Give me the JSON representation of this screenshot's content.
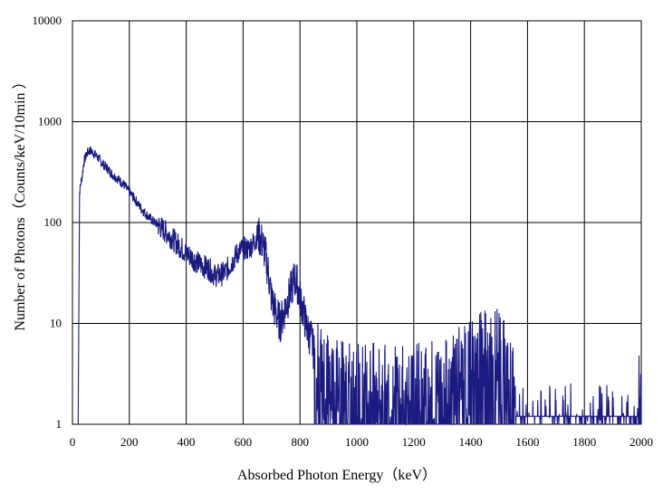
{
  "chart_data": {
    "type": "line",
    "title": "",
    "xlabel": "Absorbed Photon Energy（keV）",
    "ylabel": "Number  of Photons（Counts/keV/10min ）",
    "xlim": [
      0,
      2000
    ],
    "ylim": [
      1,
      10000
    ],
    "yscale": "log",
    "grid": true,
    "legend": "none",
    "color": "#1a1a80",
    "x_ticks": [
      "0",
      "200",
      "400",
      "600",
      "800",
      "1000",
      "1200",
      "1400",
      "1600",
      "1800",
      "2000"
    ],
    "y_ticks": [
      "1",
      "10",
      "100",
      "1000",
      "10000"
    ],
    "x_tick_values": [
      0,
      200,
      400,
      600,
      800,
      1000,
      1200,
      1400,
      1600,
      1800,
      2000
    ],
    "y_tick_values": [
      1,
      10,
      100,
      1000,
      10000
    ],
    "series": [
      {
        "x": [
          20,
          25,
          30,
          35,
          40,
          50,
          60,
          70,
          80,
          90,
          100,
          120,
          140,
          160,
          180,
          200,
          220,
          240,
          260,
          280,
          300,
          320,
          340,
          360,
          380,
          400,
          420,
          440,
          460,
          480,
          500,
          520,
          540,
          560,
          580,
          600,
          620,
          640,
          650,
          660,
          670,
          680,
          690,
          700,
          710,
          720,
          730,
          740,
          750,
          760,
          770,
          780,
          790,
          800,
          810,
          820,
          830,
          840,
          850,
          860,
          880,
          900,
          920,
          940,
          960,
          980,
          1000,
          1050,
          1100,
          1150,
          1200,
          1250,
          1300,
          1350,
          1400,
          1420,
          1440,
          1460,
          1480,
          1500,
          1520,
          1540,
          1560,
          1600,
          1650,
          1700,
          1750,
          1800,
          1850,
          1900,
          1950,
          1990,
          2000
        ],
        "y": [
          1,
          200,
          250,
          300,
          400,
          480,
          520,
          500,
          470,
          440,
          400,
          350,
          300,
          270,
          240,
          200,
          170,
          140,
          120,
          105,
          95,
          85,
          75,
          65,
          57,
          50,
          45,
          40,
          37,
          35,
          30,
          30,
          33,
          40,
          50,
          55,
          55,
          65,
          75,
          70,
          60,
          45,
          30,
          18,
          14,
          12,
          10,
          12,
          15,
          18,
          22,
          28,
          25,
          18,
          14,
          10,
          8,
          7,
          5,
          4,
          3.5,
          3,
          2.5,
          2.5,
          2.4,
          2.3,
          2.2,
          2.1,
          2.0,
          2.0,
          2.0,
          2.2,
          2.6,
          3.0,
          3.5,
          4,
          4.5,
          5,
          5,
          4.5,
          3.5,
          2.5,
          1.6,
          1.4,
          1.3,
          1.3,
          1.3,
          1.3,
          1.3,
          1.3,
          1.3,
          1.3,
          3
        ]
      }
    ]
  }
}
